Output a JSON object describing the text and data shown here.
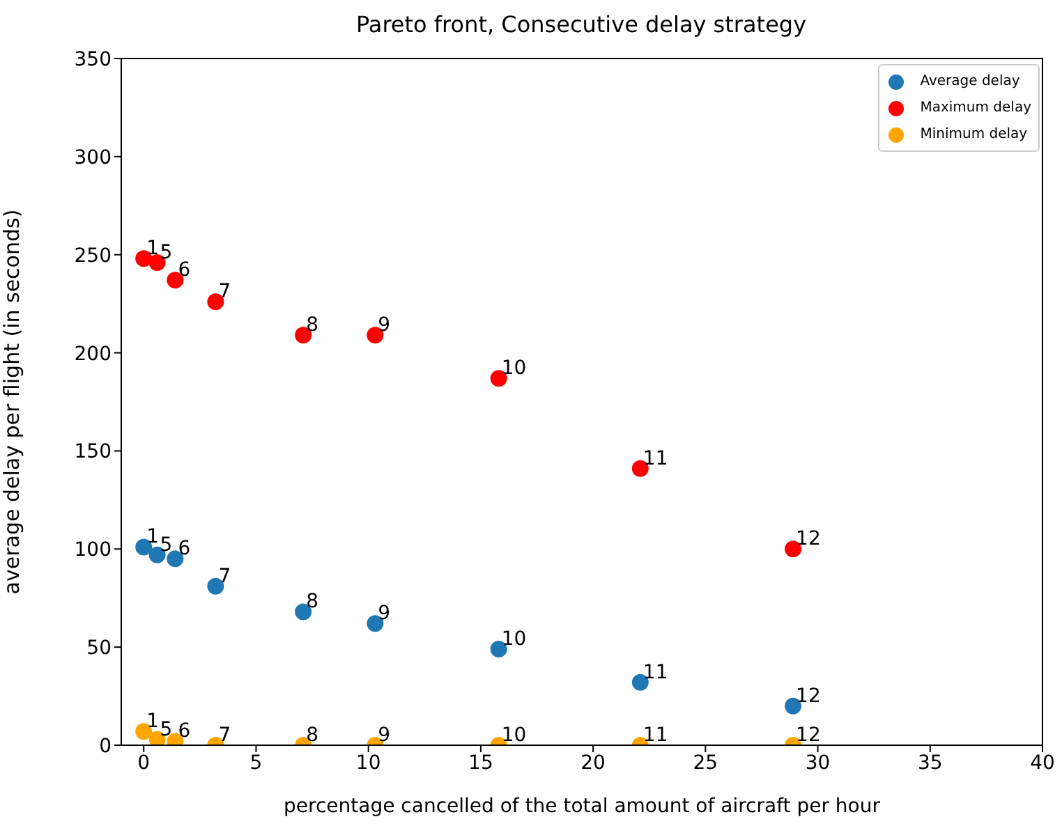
{
  "chart_data": {
    "type": "scatter",
    "title": "Pareto front, Consecutive delay strategy",
    "xlabel": "percentage cancelled of the total amount of aircraft per hour",
    "ylabel": "average delay per flight (in seconds)",
    "x": [
      0,
      0.6,
      1.4,
      3.2,
      7.1,
      10.3,
      15.8,
      22.1,
      28.9
    ],
    "series": [
      {
        "name": "Average delay",
        "color": "#1f77b4",
        "values": [
          101,
          97,
          95,
          81,
          68,
          62,
          49,
          32,
          20
        ]
      },
      {
        "name": "Maximum delay",
        "color": "#ff0000",
        "values": [
          248,
          246,
          237,
          226,
          209,
          209,
          187,
          141,
          100
        ]
      },
      {
        "name": "Minimum delay",
        "color": "#ffa500",
        "values": [
          7,
          3,
          2,
          0,
          0,
          0,
          0,
          0,
          0
        ]
      }
    ],
    "annotations": [
      {
        "text": "1",
        "x": 0,
        "y": 101
      },
      {
        "text": "5",
        "x": 0.6,
        "y": 97
      },
      {
        "text": "6",
        "x": 1.4,
        "y": 95
      },
      {
        "text": "7",
        "x": 3.2,
        "y": 81
      },
      {
        "text": "8",
        "x": 7.1,
        "y": 68
      },
      {
        "text": "9",
        "x": 10.3,
        "y": 62
      },
      {
        "text": "10",
        "x": 15.8,
        "y": 49
      },
      {
        "text": "11",
        "x": 22.1,
        "y": 32
      },
      {
        "text": "12",
        "x": 28.9,
        "y": 20
      },
      {
        "text": "1",
        "x": 0,
        "y": 248
      },
      {
        "text": "5",
        "x": 0.6,
        "y": 246
      },
      {
        "text": "6",
        "x": 1.4,
        "y": 237
      },
      {
        "text": "7",
        "x": 3.2,
        "y": 226
      },
      {
        "text": "8",
        "x": 7.1,
        "y": 209
      },
      {
        "text": "9",
        "x": 10.3,
        "y": 209
      },
      {
        "text": "10",
        "x": 15.8,
        "y": 187
      },
      {
        "text": "11",
        "x": 22.1,
        "y": 141
      },
      {
        "text": "12",
        "x": 28.9,
        "y": 100
      },
      {
        "text": "1",
        "x": 0,
        "y": 7
      },
      {
        "text": "5",
        "x": 0.6,
        "y": 3
      },
      {
        "text": "6",
        "x": 1.4,
        "y": 2
      },
      {
        "text": "7",
        "x": 3.2,
        "y": 0
      },
      {
        "text": "8",
        "x": 7.1,
        "y": 0
      },
      {
        "text": "9",
        "x": 10.3,
        "y": 0
      },
      {
        "text": "10",
        "x": 15.8,
        "y": 0
      },
      {
        "text": "11",
        "x": 22.1,
        "y": 0
      },
      {
        "text": "12",
        "x": 28.9,
        "y": 0
      }
    ],
    "xlim": [
      -1,
      40
    ],
    "xticks": [
      0,
      5,
      10,
      15,
      20,
      25,
      30,
      35,
      40
    ],
    "ylim": [
      0,
      350
    ],
    "yticks": [
      0,
      50,
      100,
      150,
      200,
      250,
      300,
      350
    ],
    "grid": false,
    "legend": "top right",
    "marker": "circle"
  }
}
